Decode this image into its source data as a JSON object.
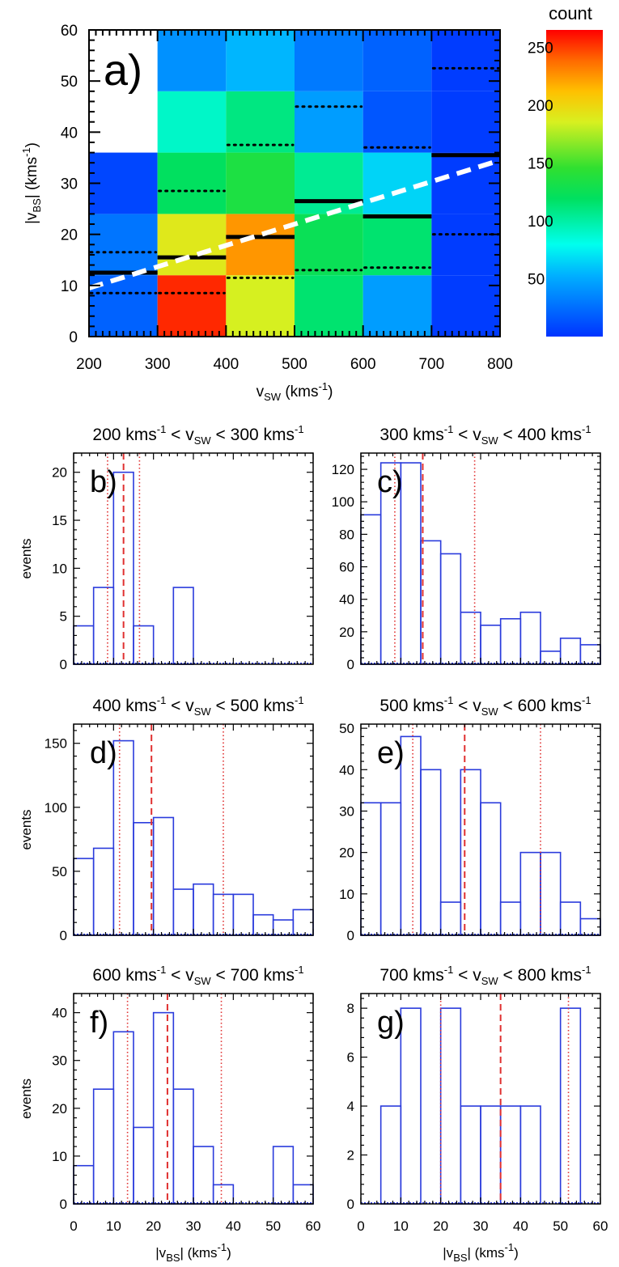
{
  "colorbar": {
    "title": "count",
    "ticks": [
      50,
      100,
      150,
      200,
      250
    ],
    "min": 0,
    "max": 265
  },
  "chart_data": [
    {
      "type": "heatmap",
      "panel_label": "a)",
      "xlabel": "v",
      "xlabel_sub": "SW",
      "xlabel_unit": " (kms",
      "xlabel_unit_sup": "-1",
      "xlabel_unit_end": ")",
      "ylabel": "|v",
      "ylabel_sub": "BS",
      "ylabel_unit": "| (kms",
      "ylabel_unit_sup": "-1",
      "ylabel_unit_end": ")",
      "xlim": [
        200,
        800
      ],
      "ylim": [
        0,
        60
      ],
      "xticks": [
        200,
        300,
        400,
        500,
        600,
        700,
        800
      ],
      "yticks": [
        0,
        10,
        20,
        30,
        40,
        50,
        60
      ],
      "columns": [
        {
          "x0": 200,
          "x1": 300,
          "cells": [
            {
              "y0": 0,
              "y1": 12,
              "v": 20
            },
            {
              "y0": 12,
              "y1": 24,
              "v": 28
            },
            {
              "y0": 24,
              "y1": 36,
              "v": 8
            }
          ],
          "median": 12.5,
          "q1": 8.5,
          "q3": 16.5
        },
        {
          "x0": 300,
          "x1": 400,
          "cells": [
            {
              "y0": 0,
              "y1": 12,
              "v": 255
            },
            {
              "y0": 12,
              "y1": 24,
              "v": 190
            },
            {
              "y0": 24,
              "y1": 36,
              "v": 120
            },
            {
              "y0": 36,
              "y1": 48,
              "v": 90
            },
            {
              "y0": 48,
              "y1": 60,
              "v": 40
            }
          ],
          "median": 15.5,
          "q1": 8.5,
          "q3": 28.5
        },
        {
          "x0": 400,
          "x1": 500,
          "cells": [
            {
              "y0": 0,
              "y1": 12,
              "v": 185
            },
            {
              "y0": 12,
              "y1": 24,
              "v": 225
            },
            {
              "y0": 24,
              "y1": 36,
              "v": 135
            },
            {
              "y0": 36,
              "y1": 48,
              "v": 110
            },
            {
              "y0": 48,
              "y1": 60,
              "v": 55
            }
          ],
          "median": 19.5,
          "q1": 11.5,
          "q3": 37.5
        },
        {
          "x0": 500,
          "x1": 600,
          "cells": [
            {
              "y0": 0,
              "y1": 12,
              "v": 115
            },
            {
              "y0": 12,
              "y1": 24,
              "v": 125
            },
            {
              "y0": 24,
              "y1": 36,
              "v": 105
            },
            {
              "y0": 36,
              "y1": 48,
              "v": 45
            },
            {
              "y0": 48,
              "y1": 60,
              "v": 30
            }
          ],
          "median": 26.5,
          "q1": 13,
          "q3": 45
        },
        {
          "x0": 600,
          "x1": 700,
          "cells": [
            {
              "y0": 0,
              "y1": 12,
              "v": 45
            },
            {
              "y0": 12,
              "y1": 24,
              "v": 115
            },
            {
              "y0": 24,
              "y1": 36,
              "v": 65
            },
            {
              "y0": 36,
              "y1": 48,
              "v": 15
            },
            {
              "y0": 48,
              "y1": 60,
              "v": 20
            }
          ],
          "median": 23.5,
          "q1": 13.5,
          "q3": 37
        },
        {
          "x0": 700,
          "x1": 800,
          "cells": [
            {
              "y0": 0,
              "y1": 12,
              "v": 4
            },
            {
              "y0": 12,
              "y1": 24,
              "v": 4
            },
            {
              "y0": 24,
              "y1": 36,
              "v": 4
            },
            {
              "y0": 36,
              "y1": 48,
              "v": 4
            },
            {
              "y0": 48,
              "y1": 60,
              "v": 4
            }
          ],
          "median": 35.5,
          "q1": 20,
          "q3": 52.5
        }
      ],
      "fit_line": {
        "x": [
          200,
          800
        ],
        "y": [
          9.5,
          34.5
        ]
      }
    },
    {
      "type": "bar",
      "panel_label": "b)",
      "title_pre": "200 kms",
      "title_mid": " < v",
      "title_sub": "SW",
      "title_post": " < 300 kms",
      "title_sup": "-1",
      "ylabel": "events",
      "xlim": [
        0,
        60
      ],
      "ylim": [
        0,
        22
      ],
      "yticks": [
        0,
        5,
        10,
        15,
        20
      ],
      "bin_width": 5,
      "values": [
        4,
        8,
        20,
        4,
        0,
        8,
        0,
        0,
        0,
        0,
        0,
        0
      ],
      "median": 12.5,
      "q1": 8.5,
      "q3": 16.5
    },
    {
      "type": "bar",
      "panel_label": "c)",
      "title_pre": "300 kms",
      "title_mid": " < v",
      "title_sub": "SW",
      "title_post": " < 400 kms",
      "title_sup": "-1",
      "ylabel": "",
      "xlim": [
        0,
        60
      ],
      "ylim": [
        0,
        130
      ],
      "yticks": [
        0,
        20,
        40,
        60,
        80,
        100,
        120
      ],
      "bin_width": 5,
      "values": [
        92,
        124,
        124,
        76,
        68,
        32,
        24,
        28,
        32,
        8,
        16,
        12
      ],
      "median": 15.5,
      "q1": 8.5,
      "q3": 28.5
    },
    {
      "type": "bar",
      "panel_label": "d)",
      "title_pre": "400 kms",
      "title_mid": " < v",
      "title_sub": "SW",
      "title_post": " < 500 kms",
      "title_sup": "-1",
      "ylabel": "events",
      "xlim": [
        0,
        60
      ],
      "ylim": [
        0,
        165
      ],
      "yticks": [
        0,
        50,
        100,
        150
      ],
      "bin_width": 5,
      "values": [
        60,
        68,
        152,
        88,
        92,
        36,
        40,
        32,
        32,
        16,
        12,
        20
      ],
      "median": 19.5,
      "q1": 11.5,
      "q3": 37.5
    },
    {
      "type": "bar",
      "panel_label": "e)",
      "title_pre": "500 kms",
      "title_mid": " < v",
      "title_sub": "SW",
      "title_post": " < 600 kms",
      "title_sup": "-1",
      "ylabel": "",
      "xlim": [
        0,
        60
      ],
      "ylim": [
        0,
        51
      ],
      "yticks": [
        0,
        10,
        20,
        30,
        40,
        50
      ],
      "bin_width": 5,
      "values": [
        32,
        32,
        48,
        40,
        8,
        40,
        32,
        8,
        20,
        20,
        8,
        4
      ],
      "median": 26,
      "q1": 13,
      "q3": 45
    },
    {
      "type": "bar",
      "panel_label": "f)",
      "title_pre": "600 kms",
      "title_mid": " < v",
      "title_sub": "SW",
      "title_post": " < 700 kms",
      "title_sup": "-1",
      "ylabel": "events",
      "xlabel": "|v",
      "xlabel_sub": "BS",
      "xlabel_unit": "| (kms",
      "xlabel_unit_sup": "-1",
      "xlabel_unit_end": ")",
      "xlim": [
        0,
        60
      ],
      "ylim": [
        0,
        44
      ],
      "yticks": [
        0,
        10,
        20,
        30,
        40
      ],
      "xticks": [
        0,
        10,
        20,
        30,
        40,
        50,
        60
      ],
      "bin_width": 5,
      "values": [
        8,
        24,
        36,
        16,
        40,
        24,
        12,
        4,
        0,
        0,
        12,
        4
      ],
      "median": 23.5,
      "q1": 13.5,
      "q3": 37
    },
    {
      "type": "bar",
      "panel_label": "g)",
      "title_pre": "700 kms",
      "title_mid": " < v",
      "title_sub": "SW",
      "title_post": " < 800 kms",
      "title_sup": "-1",
      "ylabel": "",
      "xlabel": "|v",
      "xlabel_sub": "BS",
      "xlabel_unit": "| (kms",
      "xlabel_unit_sup": "-1",
      "xlabel_unit_end": ")",
      "xlim": [
        0,
        60
      ],
      "ylim": [
        0,
        8.6
      ],
      "yticks": [
        0,
        2,
        4,
        6,
        8
      ],
      "xticks": [
        0,
        10,
        20,
        30,
        40,
        50,
        60
      ],
      "bin_width": 5,
      "values": [
        0,
        4,
        8,
        0,
        8,
        4,
        4,
        4,
        4,
        0,
        8,
        0
      ],
      "median": 35,
      "q1": 20,
      "q3": 52
    }
  ]
}
